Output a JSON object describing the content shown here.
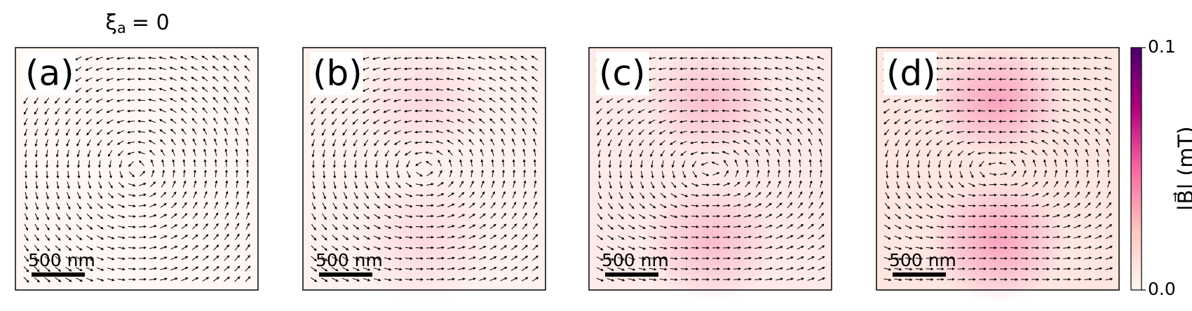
{
  "chart_data": {
    "type": "vector-field-panels",
    "title": {
      "symbol": "ξ",
      "subscript": "a",
      "value": "=  0"
    },
    "panels": [
      {
        "label": "(a)",
        "scale_bar": "500 nm"
      },
      {
        "label": "(b)",
        "scale_bar": "500 nm"
      },
      {
        "label": "(c)",
        "scale_bar": "500 nm"
      },
      {
        "label": "(d)",
        "scale_bar": "500 nm"
      }
    ],
    "colorbar": {
      "label": "|B⃗| (mT)",
      "lim": [
        0,
        0.1
      ],
      "ticks": [
        {
          "value": 0,
          "label": "0.0"
        },
        {
          "value": 0.1,
          "label": "0.1"
        }
      ],
      "colors": [
        "#fff7f3",
        "#fcc5c0",
        "#f768a1",
        "#ae017e",
        "#49006a"
      ]
    }
  }
}
